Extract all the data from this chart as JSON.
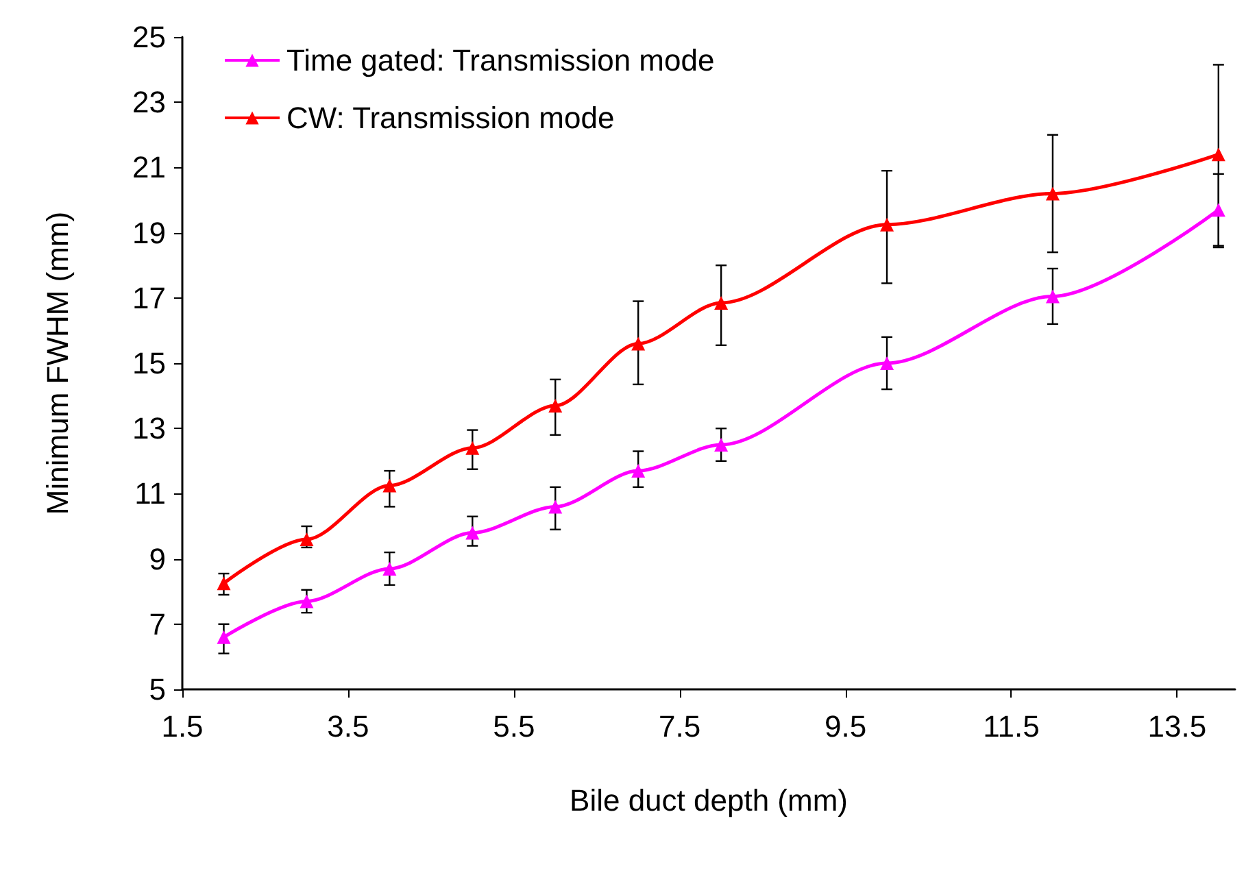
{
  "chart_data": {
    "type": "line",
    "xlabel": "Bile duct depth (mm)",
    "ylabel": "Minimum FWHM (mm)",
    "x": [
      2,
      3,
      4,
      5,
      6,
      7,
      8,
      10,
      12,
      14
    ],
    "series": [
      {
        "name": "Time gated: Transmission mode",
        "color": "#ff00ff",
        "values": [
          6.6,
          7.7,
          8.7,
          9.8,
          10.6,
          11.7,
          12.5,
          15.0,
          17.05,
          19.7
        ],
        "errors": [
          [
            6.1,
            7.0
          ],
          [
            7.35,
            8.05
          ],
          [
            8.2,
            9.2
          ],
          [
            9.4,
            10.3
          ],
          [
            9.9,
            11.2
          ],
          [
            11.2,
            12.3
          ],
          [
            12.0,
            13.0
          ],
          [
            14.2,
            15.8
          ],
          [
            16.2,
            17.9
          ],
          [
            18.6,
            20.8
          ]
        ]
      },
      {
        "name": "CW: Transmission mode",
        "color": "#ff0000",
        "values": [
          8.25,
          9.6,
          11.25,
          12.4,
          13.7,
          15.6,
          16.85,
          19.25,
          20.2,
          21.4
        ],
        "errors": [
          [
            7.9,
            8.55
          ],
          [
            9.35,
            10.0
          ],
          [
            10.6,
            11.7
          ],
          [
            11.75,
            12.95
          ],
          [
            12.8,
            14.5
          ],
          [
            14.35,
            16.9
          ],
          [
            15.55,
            18.0
          ],
          [
            17.45,
            20.9
          ],
          [
            18.4,
            22.0
          ],
          [
            18.55,
            24.15
          ]
        ]
      }
    ],
    "xlim": [
      1.5,
      14.2
    ],
    "xticks": [
      1.5,
      3.5,
      5.5,
      7.5,
      9.5,
      11.5,
      13.5
    ],
    "ylim": [
      5,
      25
    ],
    "yticks": [
      5,
      7,
      9,
      11,
      13,
      15,
      17,
      19,
      21,
      23,
      25
    ],
    "legend": "top left",
    "marker": "triangle",
    "line_style": "solid",
    "grid": false
  }
}
